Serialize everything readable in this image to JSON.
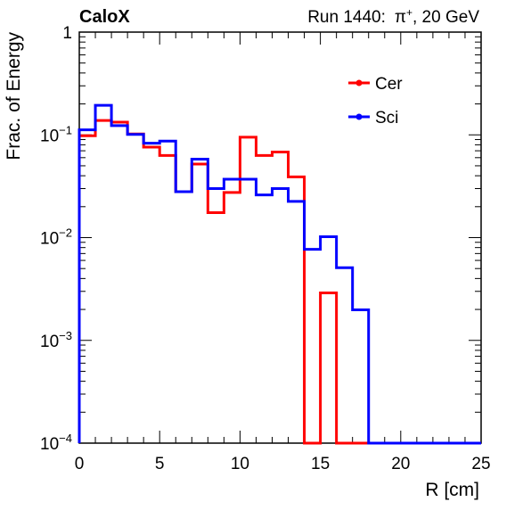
{
  "header": {
    "experiment": "CaloX",
    "run_label": "Run 1440:",
    "particle_base": "π",
    "particle_sup": "+",
    "energy": ", 20 GeV"
  },
  "chart_data": {
    "type": "line",
    "xlabel": "R [cm]",
    "ylabel": "Frac. of Energy",
    "xlim": [
      0,
      25
    ],
    "ylim": [
      0.0001,
      1
    ],
    "y_scale": "log",
    "grid": false,
    "legend_position": "top-right",
    "x_ticks": [
      {
        "value": 0,
        "label": "0"
      },
      {
        "value": 5,
        "label": "5"
      },
      {
        "value": 10,
        "label": "10"
      },
      {
        "value": 15,
        "label": "15"
      },
      {
        "value": 20,
        "label": "20"
      },
      {
        "value": 25,
        "label": "25"
      }
    ],
    "y_ticks": [
      {
        "value": 1,
        "base": "1",
        "exp": ""
      },
      {
        "value": 0.1,
        "base": "10",
        "exp": "−1"
      },
      {
        "value": 0.01,
        "base": "10",
        "exp": "−2"
      },
      {
        "value": 0.001,
        "base": "10",
        "exp": "−3"
      },
      {
        "value": 0.0001,
        "base": "10",
        "exp": "−4"
      }
    ],
    "bin_edges": [
      0,
      1,
      2,
      3,
      4,
      5,
      6,
      7,
      8,
      9,
      10,
      11,
      12,
      13,
      14,
      15,
      16,
      17,
      18,
      19,
      20,
      21,
      22,
      23,
      24,
      25
    ],
    "series": [
      {
        "name": "Cer",
        "color": "#ff0000",
        "values": [
          0.098,
          0.138,
          0.133,
          0.102,
          0.076,
          0.063,
          0.028,
          0.052,
          0.0175,
          0.0275,
          0.095,
          0.063,
          0.068,
          0.039,
          0.0001,
          0.0029,
          0.0001,
          0.0001,
          0.0001,
          0.0001,
          0.0001,
          0.0001,
          0.0001,
          0.0001,
          0.0001
        ]
      },
      {
        "name": "Sci",
        "color": "#0000ff",
        "values": [
          0.112,
          0.194,
          0.123,
          0.101,
          0.083,
          0.087,
          0.028,
          0.058,
          0.03,
          0.037,
          0.037,
          0.026,
          0.03,
          0.0225,
          0.0077,
          0.0102,
          0.0051,
          0.00198,
          0.0001,
          0.0001,
          0.0001,
          0.0001,
          0.0001,
          0.0001,
          0.0001
        ]
      }
    ]
  }
}
